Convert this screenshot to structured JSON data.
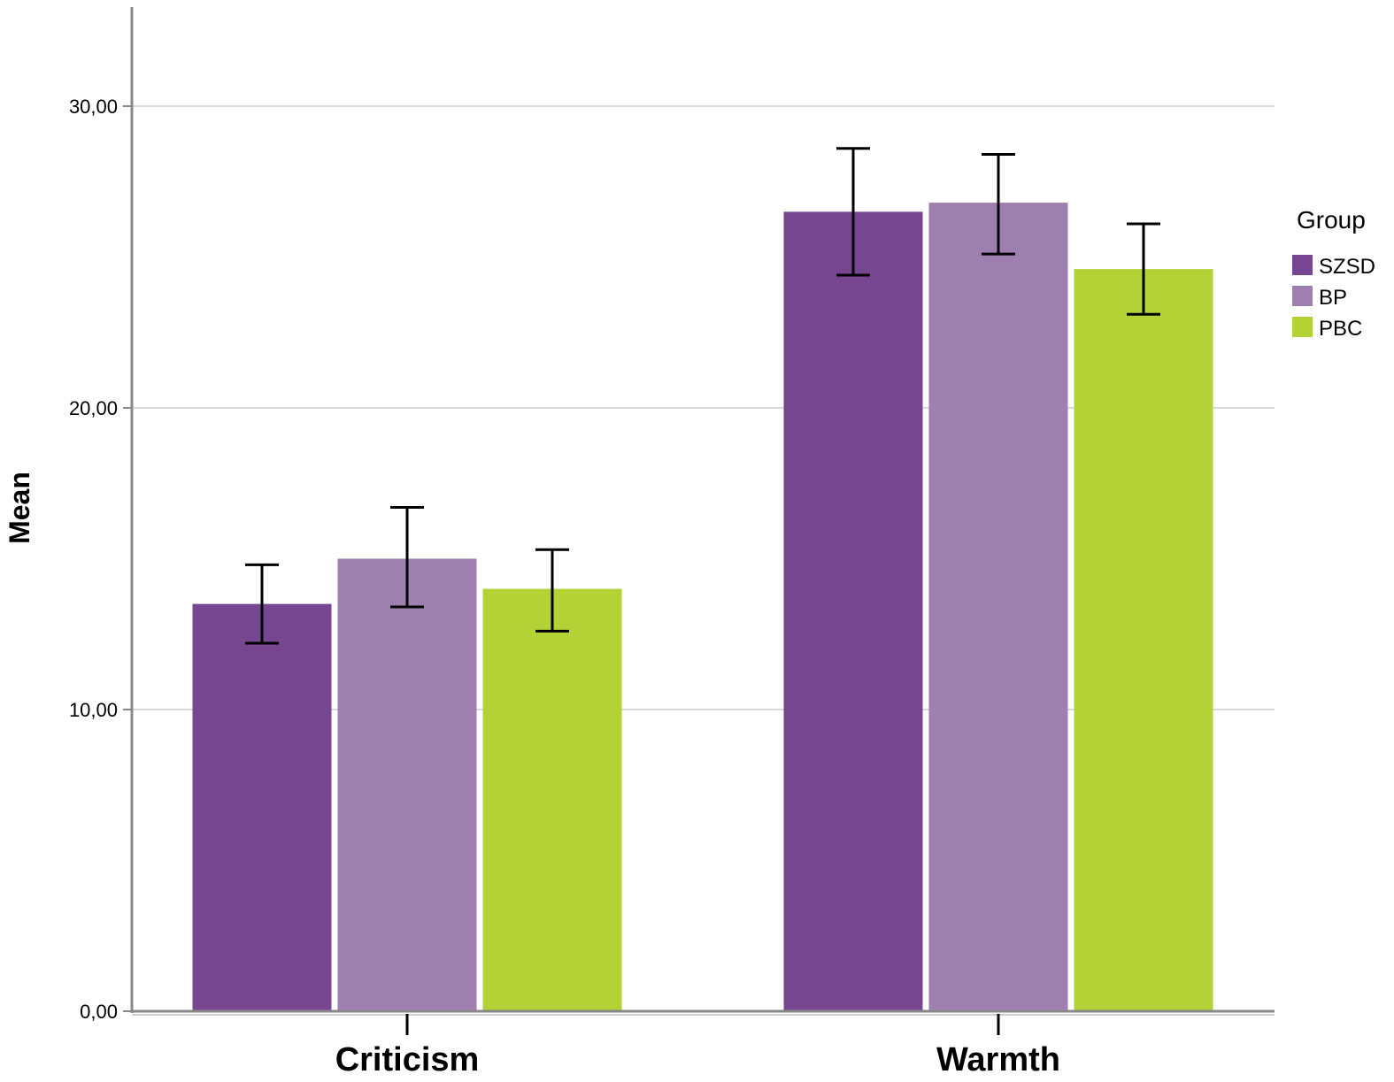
{
  "chart_data": {
    "type": "bar",
    "categories": [
      "Criticism",
      "Warmth"
    ],
    "series": [
      {
        "name": "SZSD",
        "values": [
          13.5,
          26.5
        ],
        "error": [
          [
            12.2,
            14.8
          ],
          [
            24.4,
            28.6
          ]
        ],
        "color": "#764691"
      },
      {
        "name": "BP",
        "values": [
          15.0,
          26.8
        ],
        "error": [
          [
            13.4,
            16.7
          ],
          [
            25.1,
            28.4
          ]
        ],
        "color": "#9f7fb0"
      },
      {
        "name": "PBC",
        "values": [
          14.0,
          24.6
        ],
        "error": [
          [
            12.6,
            15.3
          ],
          [
            23.1,
            26.1
          ]
        ],
        "color": "#b2d235"
      }
    ],
    "xlabel": "",
    "ylabel": "Mean",
    "ylim": [
      0,
      30
    ],
    "yticks": [
      "0,00",
      "10,00",
      "20,00",
      "30,00"
    ],
    "ytick_values": [
      0,
      10,
      20,
      30
    ],
    "grid": true,
    "legend": {
      "title": "Group",
      "position": "right"
    },
    "axis_color": "#888888",
    "grid_color": "#d9d9d9"
  }
}
